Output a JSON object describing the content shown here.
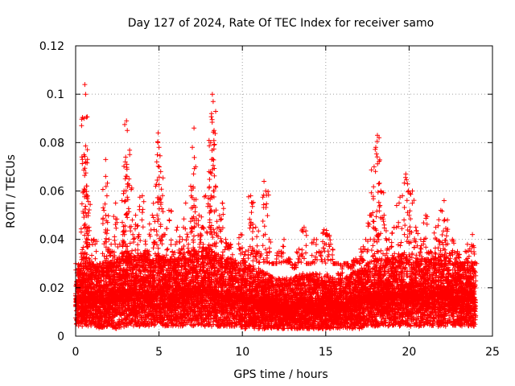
{
  "chart_data": {
    "type": "scatter",
    "title": "Day 127 of 2024, Rate Of TEC Index for receiver samo",
    "xlabel": "GPS time / hours",
    "ylabel": "ROTI / TECUs",
    "xlim": [
      0,
      25
    ],
    "ylim": [
      0,
      0.12
    ],
    "xticks": [
      "0",
      "5",
      "10",
      "15",
      "20",
      "25"
    ],
    "xtick_values": [
      0,
      5,
      10,
      15,
      20,
      25
    ],
    "yticks": [
      "0",
      "0.02",
      "0.04",
      "0.06",
      "0.08",
      "0.1",
      "0.12"
    ],
    "ytick_values": [
      0,
      0.02,
      0.04,
      0.06,
      0.08,
      0.1,
      0.12
    ],
    "grid": true,
    "marker": "+",
    "color": "#ff0000",
    "series": [
      {
        "name": "ROTI",
        "points": [
          [
            0.1,
            0.014
          ],
          [
            0.2,
            0.018
          ],
          [
            0.3,
            0.025
          ],
          [
            0.4,
            0.02
          ],
          [
            0.5,
            0.034
          ],
          [
            0.5,
            0.06
          ],
          [
            0.5,
            0.075
          ],
          [
            0.5,
            0.09
          ],
          [
            0.55,
            0.104
          ],
          [
            0.6,
            0.1
          ],
          [
            0.6,
            0.072
          ],
          [
            0.7,
            0.058
          ],
          [
            0.8,
            0.045
          ],
          [
            0.9,
            0.03
          ],
          [
            1.0,
            0.022
          ],
          [
            1.1,
            0.04
          ],
          [
            1.2,
            0.028
          ],
          [
            1.4,
            0.018
          ],
          [
            1.6,
            0.03
          ],
          [
            1.7,
            0.052
          ],
          [
            1.8,
            0.073
          ],
          [
            1.8,
            0.066
          ],
          [
            2.0,
            0.04
          ],
          [
            2.2,
            0.035
          ],
          [
            2.4,
            0.055
          ],
          [
            2.6,
            0.032
          ],
          [
            2.8,
            0.047
          ],
          [
            2.9,
            0.06
          ],
          [
            3.0,
            0.074
          ],
          [
            3.05,
            0.089
          ],
          [
            3.1,
            0.085
          ],
          [
            3.2,
            0.065
          ],
          [
            3.4,
            0.048
          ],
          [
            3.6,
            0.05
          ],
          [
            3.8,
            0.042
          ],
          [
            4.0,
            0.058
          ],
          [
            4.2,
            0.038
          ],
          [
            4.4,
            0.035
          ],
          [
            4.6,
            0.05
          ],
          [
            4.8,
            0.062
          ],
          [
            4.9,
            0.075
          ],
          [
            4.95,
            0.084
          ],
          [
            5.0,
            0.078
          ],
          [
            5.1,
            0.068
          ],
          [
            5.3,
            0.042
          ],
          [
            5.6,
            0.052
          ],
          [
            5.8,
            0.035
          ],
          [
            6.1,
            0.045
          ],
          [
            6.4,
            0.04
          ],
          [
            6.6,
            0.055
          ],
          [
            6.9,
            0.062
          ],
          [
            7.0,
            0.078
          ],
          [
            7.1,
            0.086
          ],
          [
            7.2,
            0.07
          ],
          [
            7.4,
            0.05
          ],
          [
            7.6,
            0.045
          ],
          [
            7.8,
            0.058
          ],
          [
            8.0,
            0.068
          ],
          [
            8.1,
            0.08
          ],
          [
            8.15,
            0.092
          ],
          [
            8.2,
            0.1
          ],
          [
            8.25,
            0.097
          ],
          [
            8.3,
            0.085
          ],
          [
            8.4,
            0.062
          ],
          [
            8.6,
            0.045
          ],
          [
            8.8,
            0.055
          ],
          [
            9.0,
            0.04
          ],
          [
            9.3,
            0.038
          ],
          [
            9.6,
            0.03
          ],
          [
            9.9,
            0.042
          ],
          [
            10.2,
            0.035
          ],
          [
            10.5,
            0.058
          ],
          [
            10.6,
            0.055
          ],
          [
            10.8,
            0.045
          ],
          [
            11.0,
            0.035
          ],
          [
            11.3,
            0.064
          ],
          [
            11.4,
            0.06
          ],
          [
            11.6,
            0.04
          ],
          [
            11.9,
            0.03
          ],
          [
            12.2,
            0.035
          ],
          [
            12.5,
            0.04
          ],
          [
            12.8,
            0.032
          ],
          [
            13.1,
            0.028
          ],
          [
            13.4,
            0.036
          ],
          [
            13.7,
            0.045
          ],
          [
            14.0,
            0.03
          ],
          [
            14.3,
            0.04
          ],
          [
            14.6,
            0.035
          ],
          [
            14.9,
            0.044
          ],
          [
            15.1,
            0.042
          ],
          [
            15.3,
            0.038
          ],
          [
            15.6,
            0.03
          ],
          [
            15.9,
            0.025
          ],
          [
            16.2,
            0.03
          ],
          [
            16.5,
            0.028
          ],
          [
            16.8,
            0.032
          ],
          [
            17.1,
            0.036
          ],
          [
            17.4,
            0.04
          ],
          [
            17.7,
            0.05
          ],
          [
            17.9,
            0.07
          ],
          [
            18.0,
            0.078
          ],
          [
            18.1,
            0.083
          ],
          [
            18.2,
            0.082
          ],
          [
            18.3,
            0.06
          ],
          [
            18.5,
            0.05
          ],
          [
            18.8,
            0.04
          ],
          [
            19.1,
            0.045
          ],
          [
            19.4,
            0.055
          ],
          [
            19.6,
            0.058
          ],
          [
            19.8,
            0.067
          ],
          [
            20.0,
            0.05
          ],
          [
            20.2,
            0.06
          ],
          [
            20.4,
            0.045
          ],
          [
            20.7,
            0.04
          ],
          [
            21.0,
            0.05
          ],
          [
            21.3,
            0.035
          ],
          [
            21.6,
            0.045
          ],
          [
            21.9,
            0.052
          ],
          [
            22.1,
            0.056
          ],
          [
            22.3,
            0.048
          ],
          [
            22.6,
            0.04
          ],
          [
            22.9,
            0.035
          ],
          [
            23.2,
            0.03
          ],
          [
            23.5,
            0.038
          ],
          [
            23.8,
            0.042
          ],
          [
            23.9,
            0.03
          ]
        ],
        "band": [
          [
            0.0,
            0.004,
            0.028
          ],
          [
            0.5,
            0.004,
            0.03
          ],
          [
            1.0,
            0.004,
            0.03
          ],
          [
            1.5,
            0.003,
            0.028
          ],
          [
            2.0,
            0.004,
            0.03
          ],
          [
            2.5,
            0.003,
            0.032
          ],
          [
            3.0,
            0.004,
            0.036
          ],
          [
            3.5,
            0.004,
            0.034
          ],
          [
            4.0,
            0.004,
            0.034
          ],
          [
            4.5,
            0.004,
            0.032
          ],
          [
            5.0,
            0.004,
            0.034
          ],
          [
            5.5,
            0.004,
            0.032
          ],
          [
            6.0,
            0.004,
            0.032
          ],
          [
            6.5,
            0.004,
            0.034
          ],
          [
            7.0,
            0.004,
            0.036
          ],
          [
            7.5,
            0.004,
            0.036
          ],
          [
            8.0,
            0.004,
            0.038
          ],
          [
            8.5,
            0.004,
            0.034
          ],
          [
            9.0,
            0.004,
            0.032
          ],
          [
            9.5,
            0.004,
            0.032
          ],
          [
            10.0,
            0.003,
            0.03
          ],
          [
            10.5,
            0.003,
            0.03
          ],
          [
            11.0,
            0.003,
            0.028
          ],
          [
            11.5,
            0.003,
            0.026
          ],
          [
            12.0,
            0.003,
            0.024
          ],
          [
            12.5,
            0.003,
            0.024
          ],
          [
            13.0,
            0.003,
            0.024
          ],
          [
            13.5,
            0.003,
            0.026
          ],
          [
            14.0,
            0.003,
            0.026
          ],
          [
            14.5,
            0.003,
            0.026
          ],
          [
            15.0,
            0.003,
            0.026
          ],
          [
            15.5,
            0.003,
            0.024
          ],
          [
            16.0,
            0.003,
            0.024
          ],
          [
            16.5,
            0.003,
            0.026
          ],
          [
            17.0,
            0.003,
            0.028
          ],
          [
            17.5,
            0.004,
            0.03
          ],
          [
            18.0,
            0.004,
            0.032
          ],
          [
            18.5,
            0.004,
            0.032
          ],
          [
            19.0,
            0.004,
            0.032
          ],
          [
            19.5,
            0.004,
            0.034
          ],
          [
            20.0,
            0.004,
            0.034
          ],
          [
            20.5,
            0.004,
            0.032
          ],
          [
            21.0,
            0.004,
            0.032
          ],
          [
            21.5,
            0.004,
            0.032
          ],
          [
            22.0,
            0.004,
            0.034
          ],
          [
            22.5,
            0.004,
            0.032
          ],
          [
            23.0,
            0.004,
            0.03
          ],
          [
            23.5,
            0.004,
            0.03
          ],
          [
            24.0,
            0.004,
            0.028
          ]
        ]
      }
    ]
  }
}
